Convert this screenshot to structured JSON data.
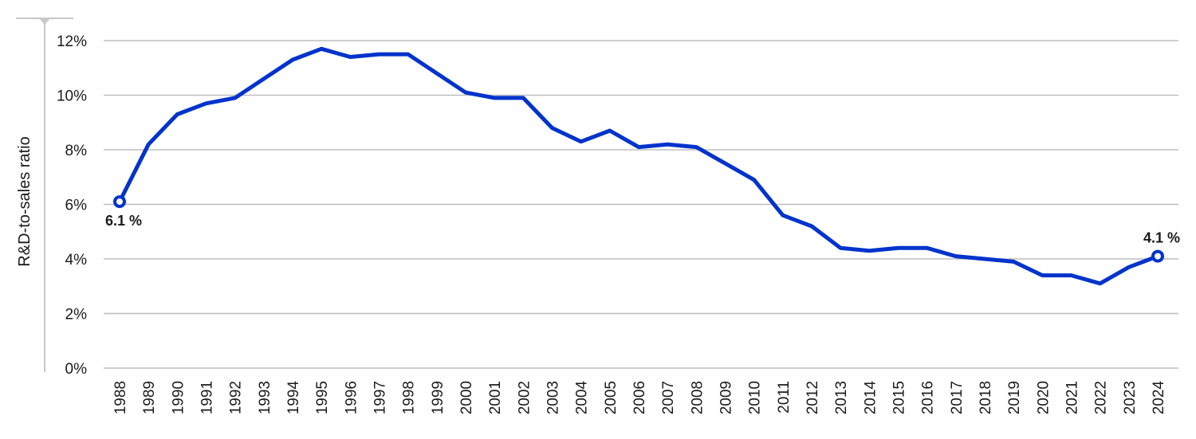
{
  "chart_data": {
    "type": "line",
    "title": "",
    "xlabel": "",
    "ylabel": "R&D-to-sales ratio",
    "ylim": [
      0,
      12
    ],
    "yticks": [
      "0%",
      "2%",
      "4%",
      "6%",
      "8%",
      "10%",
      "12%"
    ],
    "grid": true,
    "legend": null,
    "color": "#0033cc",
    "categories": [
      "1988",
      "1989",
      "1990",
      "1991",
      "1992",
      "1993",
      "1994",
      "1995",
      "1996",
      "1997",
      "1998",
      "1999",
      "2000",
      "2001",
      "2002",
      "2003",
      "2004",
      "2005",
      "2006",
      "2007",
      "2008",
      "2009",
      "2010",
      "2011",
      "2012",
      "2013",
      "2014",
      "2015",
      "2016",
      "2017",
      "2018",
      "2019",
      "2020",
      "2021",
      "2022",
      "2023",
      "2024"
    ],
    "series": [
      {
        "name": "R&D-to-sales ratio",
        "values": [
          6.1,
          8.2,
          9.3,
          9.7,
          9.9,
          10.6,
          11.3,
          11.7,
          11.4,
          11.5,
          11.5,
          10.8,
          10.1,
          9.9,
          9.9,
          8.8,
          8.3,
          8.7,
          8.1,
          8.2,
          8.1,
          7.5,
          6.9,
          5.6,
          5.2,
          4.4,
          4.3,
          4.4,
          4.4,
          4.1,
          4.0,
          3.9,
          3.4,
          3.4,
          3.1,
          3.7,
          4.1
        ]
      }
    ],
    "annotations": [
      {
        "year": "1988",
        "label": "6.1 %"
      },
      {
        "year": "2024",
        "label": "4.1 %"
      }
    ]
  }
}
